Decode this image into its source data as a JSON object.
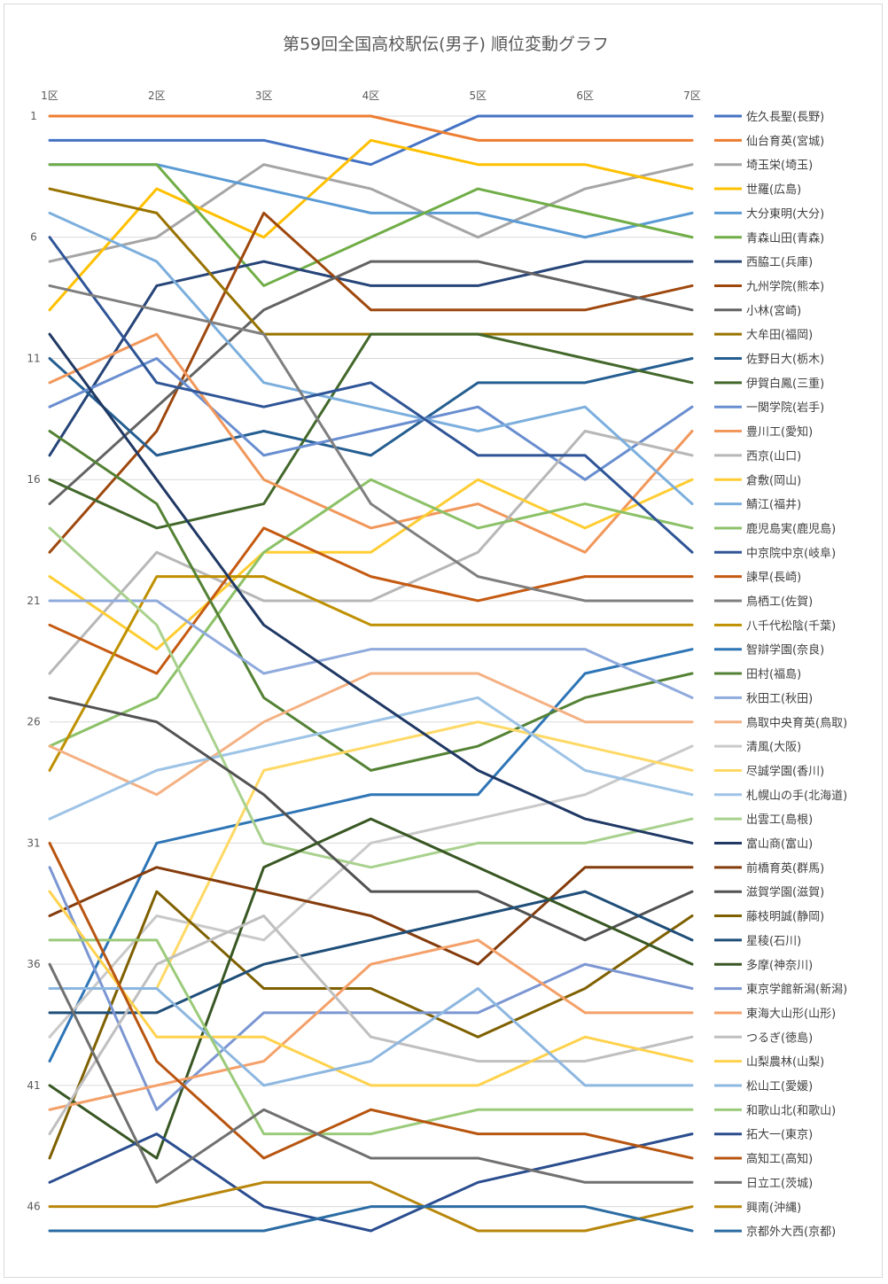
{
  "chart_data": {
    "type": "line",
    "title": "第59回全国高校駅伝(男子) 順位変動グラフ",
    "categories": [
      "1区",
      "2区",
      "3区",
      "4区",
      "5区",
      "6区",
      "7区"
    ],
    "y_ticks": [
      "1",
      "6",
      "11",
      "16",
      "21",
      "26",
      "31",
      "36",
      "41",
      "46"
    ],
    "ylim": [
      1,
      47
    ],
    "y_reversed": true,
    "grid": true,
    "legend_position": "right",
    "series": [
      {
        "name": "佐久長聖(長野)",
        "color": "#4472C4",
        "values": [
          2,
          2,
          2,
          3,
          1,
          1,
          1
        ]
      },
      {
        "name": "仙台育英(宮城)",
        "color": "#ED7D31",
        "values": [
          1,
          1,
          1,
          1,
          2,
          2,
          2
        ]
      },
      {
        "name": "埼玉栄(埼玉)",
        "color": "#A5A5A5",
        "values": [
          7,
          6,
          3,
          4,
          6,
          4,
          3
        ]
      },
      {
        "name": "世羅(広島)",
        "color": "#FFC000",
        "values": [
          9,
          4,
          6,
          2,
          3,
          3,
          4
        ]
      },
      {
        "name": "大分東明(大分)",
        "color": "#5B9BD5",
        "values": [
          3,
          3,
          4,
          5,
          5,
          6,
          5
        ]
      },
      {
        "name": "青森山田(青森)",
        "color": "#70AD47",
        "values": [
          3,
          3,
          8,
          6,
          4,
          5,
          6
        ]
      },
      {
        "name": "西脇工(兵庫)",
        "color": "#264478",
        "values": [
          15,
          8,
          7,
          8,
          8,
          7,
          7
        ]
      },
      {
        "name": "九州学院(熊本)",
        "color": "#9E480E",
        "values": [
          19,
          14,
          5,
          9,
          9,
          9,
          8
        ]
      },
      {
        "name": "小林(宮崎)",
        "color": "#636363",
        "values": [
          17,
          13,
          9,
          7,
          7,
          8,
          9
        ]
      },
      {
        "name": "大牟田(福岡)",
        "color": "#997300",
        "values": [
          4,
          5,
          10,
          10,
          10,
          10,
          10
        ]
      },
      {
        "name": "佐野日大(栃木)",
        "color": "#255E91",
        "values": [
          11,
          15,
          14,
          15,
          12,
          12,
          11
        ]
      },
      {
        "name": "伊賀白鳳(三重)",
        "color": "#43682B",
        "values": [
          16,
          18,
          17,
          10,
          10,
          11,
          12
        ]
      },
      {
        "name": "一関学院(岩手)",
        "color": "#698ED0",
        "values": [
          13,
          11,
          15,
          14,
          13,
          16,
          13
        ]
      },
      {
        "name": "豊川工(愛知)",
        "color": "#F1975A",
        "values": [
          12,
          10,
          16,
          18,
          17,
          19,
          14
        ]
      },
      {
        "name": "西京(山口)",
        "color": "#B7B7B7",
        "values": [
          24,
          19,
          21,
          21,
          19,
          14,
          15
        ]
      },
      {
        "name": "倉敷(岡山)",
        "color": "#FFCD33",
        "values": [
          20,
          23,
          19,
          19,
          16,
          18,
          16
        ]
      },
      {
        "name": "鯖江(福井)",
        "color": "#7CAFDD",
        "values": [
          5,
          7,
          12,
          13,
          14,
          13,
          17
        ]
      },
      {
        "name": "鹿児島実(鹿児島)",
        "color": "#8CC168",
        "values": [
          27,
          25,
          19,
          16,
          18,
          17,
          18
        ]
      },
      {
        "name": "中京院中京(岐阜)",
        "color": "#2F5597",
        "values": [
          6,
          12,
          13,
          12,
          15,
          15,
          19
        ]
      },
      {
        "name": "諫早(長崎)",
        "color": "#C55A11",
        "values": [
          22,
          24,
          18,
          20,
          21,
          20,
          20
        ]
      },
      {
        "name": "鳥栖工(佐賀)",
        "color": "#7F7F7F",
        "values": [
          8,
          9,
          10,
          17,
          20,
          21,
          21
        ]
      },
      {
        "name": "八千代松陰(千葉)",
        "color": "#BF9000",
        "values": [
          28,
          20,
          20,
          22,
          22,
          22,
          22
        ]
      },
      {
        "name": "智辯学園(奈良)",
        "color": "#2E75B6",
        "values": [
          40,
          31,
          30,
          29,
          29,
          24,
          23
        ]
      },
      {
        "name": "田村(福島)",
        "color": "#548235",
        "values": [
          14,
          17,
          25,
          28,
          27,
          25,
          24
        ]
      },
      {
        "name": "秋田工(秋田)",
        "color": "#8FAADC",
        "values": [
          21,
          21,
          24,
          23,
          23,
          23,
          25
        ]
      },
      {
        "name": "鳥取中央育英(鳥取)",
        "color": "#F4B183",
        "values": [
          27,
          29,
          26,
          24,
          24,
          26,
          26
        ]
      },
      {
        "name": "清風(大阪)",
        "color": "#C9C9C9",
        "values": [
          39,
          34,
          35,
          31,
          30,
          29,
          27
        ]
      },
      {
        "name": "尽誠学園(香川)",
        "color": "#FFD966",
        "values": [
          37,
          37,
          28,
          27,
          26,
          27,
          28
        ]
      },
      {
        "name": "札幌山の手(北海道)",
        "color": "#9DC3E6",
        "values": [
          30,
          28,
          27,
          26,
          25,
          28,
          29
        ]
      },
      {
        "name": "出雲工(島根)",
        "color": "#A9D18E",
        "values": [
          18,
          22,
          31,
          32,
          31,
          31,
          30
        ]
      },
      {
        "name": "富山商(富山)",
        "color": "#1F3864",
        "values": [
          10,
          16,
          22,
          25,
          28,
          30,
          31
        ]
      },
      {
        "name": "前橋育英(群馬)",
        "color": "#843C0C",
        "values": [
          34,
          32,
          33,
          34,
          36,
          32,
          32
        ]
      },
      {
        "name": "滋賀学園(滋賀)",
        "color": "#525252",
        "values": [
          25,
          26,
          29,
          33,
          33,
          35,
          33
        ]
      },
      {
        "name": "藤枝明誠(静岡)",
        "color": "#7F6000",
        "values": [
          44,
          33,
          37,
          37,
          39,
          37,
          34
        ]
      },
      {
        "name": "星稜(石川)",
        "color": "#1F4E79",
        "values": [
          38,
          38,
          36,
          35,
          34,
          33,
          35
        ]
      },
      {
        "name": "多摩(神奈川)",
        "color": "#385723",
        "values": [
          41,
          44,
          32,
          30,
          32,
          34,
          36
        ]
      },
      {
        "name": "東京学館新潟(新潟)",
        "color": "#7B96D2",
        "values": [
          32,
          42,
          38,
          38,
          38,
          36,
          37
        ]
      },
      {
        "name": "東海大山形(山形)",
        "color": "#F4A069",
        "values": [
          42,
          41,
          40,
          36,
          35,
          38,
          38
        ]
      },
      {
        "name": "つるぎ(徳島)",
        "color": "#BFBFBF",
        "values": [
          43,
          36,
          34,
          39,
          40,
          40,
          39
        ]
      },
      {
        "name": "山梨農林(山梨)",
        "color": "#FFD24D",
        "values": [
          33,
          39,
          39,
          41,
          41,
          39,
          40
        ]
      },
      {
        "name": "松山工(愛媛)",
        "color": "#8DB7E0",
        "values": [
          37,
          37,
          41,
          40,
          37,
          41,
          41
        ]
      },
      {
        "name": "和歌山北(和歌山)",
        "color": "#9BCB7A",
        "values": [
          35,
          35,
          43,
          43,
          42,
          42,
          42
        ]
      },
      {
        "name": "拓大一(東京)",
        "color": "#2A4D8F",
        "values": [
          45,
          43,
          46,
          47,
          45,
          44,
          43
        ]
      },
      {
        "name": "高知工(高知)",
        "color": "#B85510",
        "values": [
          31,
          40,
          44,
          42,
          43,
          43,
          44
        ]
      },
      {
        "name": "日立工(茨城)",
        "color": "#707070",
        "values": [
          36,
          45,
          42,
          44,
          44,
          45,
          45
        ]
      },
      {
        "name": "興南(沖縄)",
        "color": "#B8860B",
        "values": [
          46,
          46,
          45,
          45,
          47,
          47,
          46
        ]
      },
      {
        "name": "京都外大西(京都)",
        "color": "#2B6CA3",
        "values": [
          47,
          47,
          47,
          46,
          46,
          46,
          47
        ]
      }
    ]
  }
}
